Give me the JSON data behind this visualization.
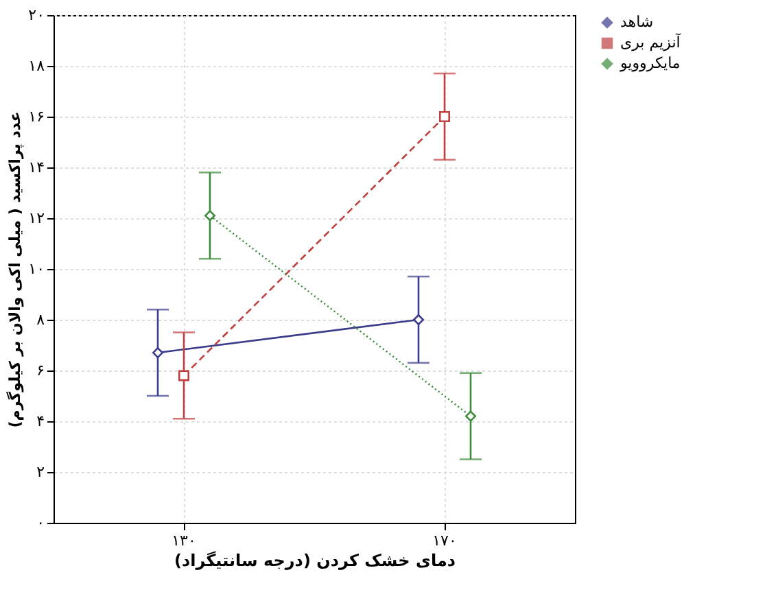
{
  "chart_data": {
    "type": "line",
    "xlabel": "دمای خشک کردن (درجه سانتیگراد)",
    "ylabel": "عدد پراکسید ( میلی اکی والان بر کیلوگرم)",
    "categories": [
      "۱۳۰",
      "۱۷۰"
    ],
    "series": [
      {
        "name": "شاهد",
        "color": "#3c3c8c",
        "values": [
          6.7,
          8.0
        ],
        "errors": [
          1.7,
          1.7
        ],
        "marker": "diamond",
        "line_style": "solid"
      },
      {
        "name": "آنزیم بری",
        "color": "#c04040",
        "values": [
          5.8,
          16.0
        ],
        "errors": [
          1.7,
          1.7
        ],
        "marker": "square",
        "line_style": "dashed"
      },
      {
        "name": "مایکروویو",
        "color": "#3c8c3c",
        "values": [
          12.1,
          4.2
        ],
        "errors": [
          1.7,
          1.7
        ],
        "marker": "diamond",
        "line_style": "dotted"
      }
    ],
    "ylim": [
      0,
      20
    ],
    "yticks": [
      {
        "value": 0,
        "label": "۰"
      },
      {
        "value": 2,
        "label": "۲"
      },
      {
        "value": 4,
        "label": "۴"
      },
      {
        "value": 6,
        "label": "۶"
      },
      {
        "value": 8,
        "label": "۸"
      },
      {
        "value": 10,
        "label": "۱۰"
      },
      {
        "value": 12,
        "label": "۱۲"
      },
      {
        "value": 14,
        "label": "۱۴"
      },
      {
        "value": 16,
        "label": "۱۶"
      },
      {
        "value": 18,
        "label": "۱۸"
      },
      {
        "value": 20,
        "label": "۲۰"
      }
    ],
    "grid": true,
    "legend": "right"
  }
}
